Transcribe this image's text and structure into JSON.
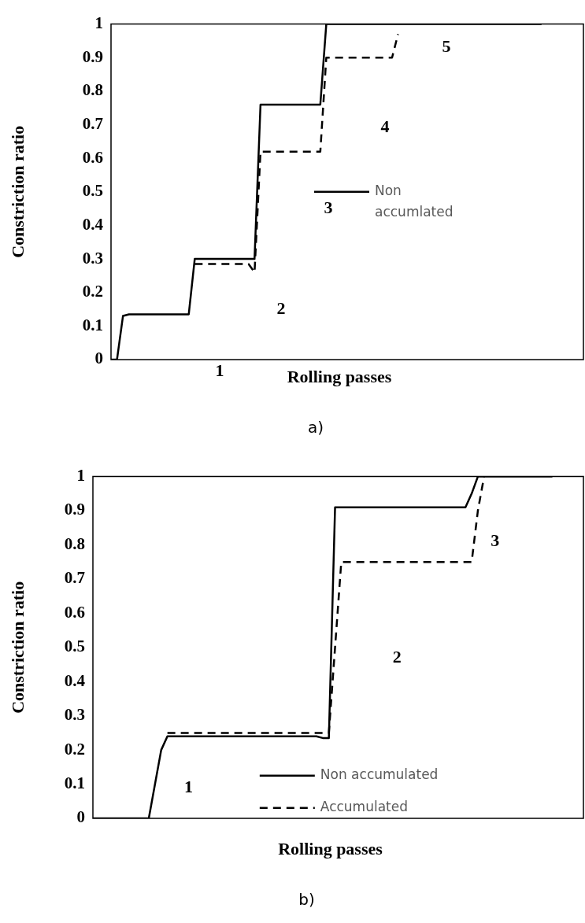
{
  "chart_data": [
    {
      "type": "line",
      "xlabel": "Rolling passes",
      "ylabel": "Constriction ratio",
      "categories": [
        null,
        null,
        null,
        null,
        null,
        null,
        null,
        null,
        null,
        null,
        null,
        null,
        null,
        null,
        null,
        null,
        null,
        null,
        null,
        null,
        null,
        null,
        null,
        null,
        null,
        null,
        null,
        null,
        null,
        null,
        null,
        null,
        null,
        null,
        null,
        null,
        null,
        null,
        null,
        null,
        null,
        null,
        null,
        null,
        null,
        null,
        null,
        null,
        null,
        null,
        null,
        null,
        null,
        null,
        null,
        null,
        null,
        null,
        null,
        null,
        null,
        null,
        null,
        null,
        null,
        null,
        null,
        null,
        null,
        null,
        null,
        null,
        null,
        null,
        null,
        null,
        null,
        null,
        null,
        null
      ],
      "series": [
        {
          "name": "Non accumlated",
          "color": "#000000",
          "line_style": "solid",
          "values": [
            0,
            0,
            0.13,
            0.135,
            0.135,
            0.135,
            0.135,
            0.135,
            0.135,
            0.135,
            0.135,
            0.135,
            0.135,
            0.135,
            0.3,
            0.3,
            0.3,
            0.3,
            0.3,
            0.3,
            0.3,
            0.3,
            0.3,
            0.3,
            0.3,
            0.76,
            0.76,
            0.76,
            0.76,
            0.76,
            0.76,
            0.76,
            0.76,
            0.76,
            0.76,
            0.76,
            1,
            1,
            1,
            1,
            1,
            1,
            1,
            1,
            1,
            1,
            1,
            1,
            1,
            1,
            1,
            1,
            1,
            1,
            1,
            1,
            1,
            1,
            1,
            1,
            1,
            1,
            1,
            1,
            1,
            1,
            1,
            1,
            1,
            1,
            1,
            1,
            1,
            null,
            null,
            null,
            null,
            null,
            null,
            null
          ]
        },
        {
          "color": "#000000",
          "line_style": "dashed",
          "values": [
            null,
            null,
            null,
            null,
            null,
            null,
            null,
            null,
            null,
            null,
            null,
            null,
            null,
            null,
            0.285,
            0.285,
            0.285,
            0.285,
            0.285,
            0.285,
            0.285,
            0.285,
            0.285,
            0.285,
            0.26,
            0.62,
            0.62,
            0.62,
            0.62,
            0.62,
            0.62,
            0.62,
            0.62,
            0.62,
            0.62,
            0.62,
            0.9,
            0.9,
            0.9,
            0.9,
            0.9,
            0.9,
            0.9,
            0.9,
            0.9,
            0.9,
            0.9,
            0.9,
            0.97,
            null,
            null,
            null,
            null,
            null,
            null,
            null,
            null,
            null,
            null,
            null,
            null,
            null,
            null,
            null,
            null,
            null,
            null,
            null,
            null,
            null,
            null,
            null,
            null,
            null,
            null,
            null,
            null,
            null,
            null,
            null
          ]
        }
      ],
      "ylim": [
        0,
        1
      ],
      "yticks": [
        0,
        0.1,
        0.2,
        0.3,
        0.4,
        0.5,
        0.6,
        0.7,
        0.8,
        0.9,
        1
      ],
      "grid": false,
      "legend": "center",
      "marker": "none",
      "tick_labels": "y",
      "annotations": [
        "1",
        "2",
        "3",
        "4",
        "5",
        "a)"
      ]
    },
    {
      "type": "line",
      "xlabel": "Rolling passes",
      "ylabel": "Constriction ratio",
      "categories": [
        null,
        null,
        null,
        null,
        null,
        null,
        null,
        null,
        null,
        null,
        null,
        null,
        null,
        null,
        null,
        null,
        null,
        null,
        null,
        null,
        null,
        null,
        null,
        null,
        null,
        null,
        null,
        null,
        null,
        null,
        null,
        null,
        null,
        null,
        null,
        null,
        null,
        null,
        null,
        null,
        null,
        null,
        null,
        null,
        null,
        null,
        null,
        null,
        null,
        null,
        null,
        null,
        null,
        null,
        null,
        null,
        null,
        null,
        null,
        null,
        null,
        null,
        null,
        null,
        null,
        null,
        null,
        null,
        null,
        null,
        null,
        null,
        null,
        null,
        null,
        null,
        null,
        null,
        null,
        null
      ],
      "series": [
        {
          "name": "Non accumulated",
          "color": "#000000",
          "line_style": "solid",
          "values": [
            0,
            0,
            0,
            0,
            0,
            0,
            0,
            0,
            0,
            0,
            0.1,
            0.2,
            0.24,
            0.24,
            0.24,
            0.24,
            0.24,
            0.24,
            0.24,
            0.24,
            0.24,
            0.24,
            0.24,
            0.24,
            0.24,
            0.24,
            0.24,
            0.24,
            0.24,
            0.24,
            0.24,
            0.24,
            0.24,
            0.24,
            0.24,
            0.24,
            0.24,
            0.235,
            0.235,
            0.91,
            0.91,
            0.91,
            0.91,
            0.91,
            0.91,
            0.91,
            0.91,
            0.91,
            0.91,
            0.91,
            0.91,
            0.91,
            0.91,
            0.91,
            0.91,
            0.91,
            0.91,
            0.91,
            0.91,
            0.91,
            0.91,
            0.95,
            1,
            1,
            1,
            1,
            1,
            1,
            1,
            1,
            1,
            1,
            1,
            1,
            1,
            null,
            null,
            null,
            null,
            null
          ]
        },
        {
          "name": "Accumulated",
          "color": "#000000",
          "line_style": "dashed",
          "values": [
            null,
            null,
            null,
            null,
            null,
            null,
            null,
            null,
            null,
            null,
            null,
            null,
            0.25,
            0.25,
            0.25,
            0.25,
            0.25,
            0.25,
            0.25,
            0.25,
            0.25,
            0.25,
            0.25,
            0.25,
            0.25,
            0.25,
            0.25,
            0.25,
            0.25,
            0.25,
            0.25,
            0.25,
            0.25,
            0.25,
            0.25,
            0.25,
            0.25,
            0.25,
            0.25,
            0.5,
            0.75,
            0.75,
            0.75,
            0.75,
            0.75,
            0.75,
            0.75,
            0.75,
            0.75,
            0.75,
            0.75,
            0.75,
            0.75,
            0.75,
            0.75,
            0.75,
            0.75,
            0.75,
            0.75,
            0.75,
            0.75,
            0.75,
            0.9,
            1,
            null,
            null,
            null,
            null,
            null,
            null,
            null,
            null,
            null,
            null,
            null,
            null,
            null,
            null,
            null,
            null
          ]
        }
      ],
      "ylim": [
        0,
        1
      ],
      "yticks": [
        0,
        0.1,
        0.2,
        0.3,
        0.4,
        0.5,
        0.6,
        0.7,
        0.8,
        0.9,
        1
      ],
      "grid": false,
      "legend": "bottom",
      "marker": "none",
      "tick_labels": "y",
      "annotations": [
        "1",
        "2",
        "3",
        "b)"
      ]
    }
  ]
}
